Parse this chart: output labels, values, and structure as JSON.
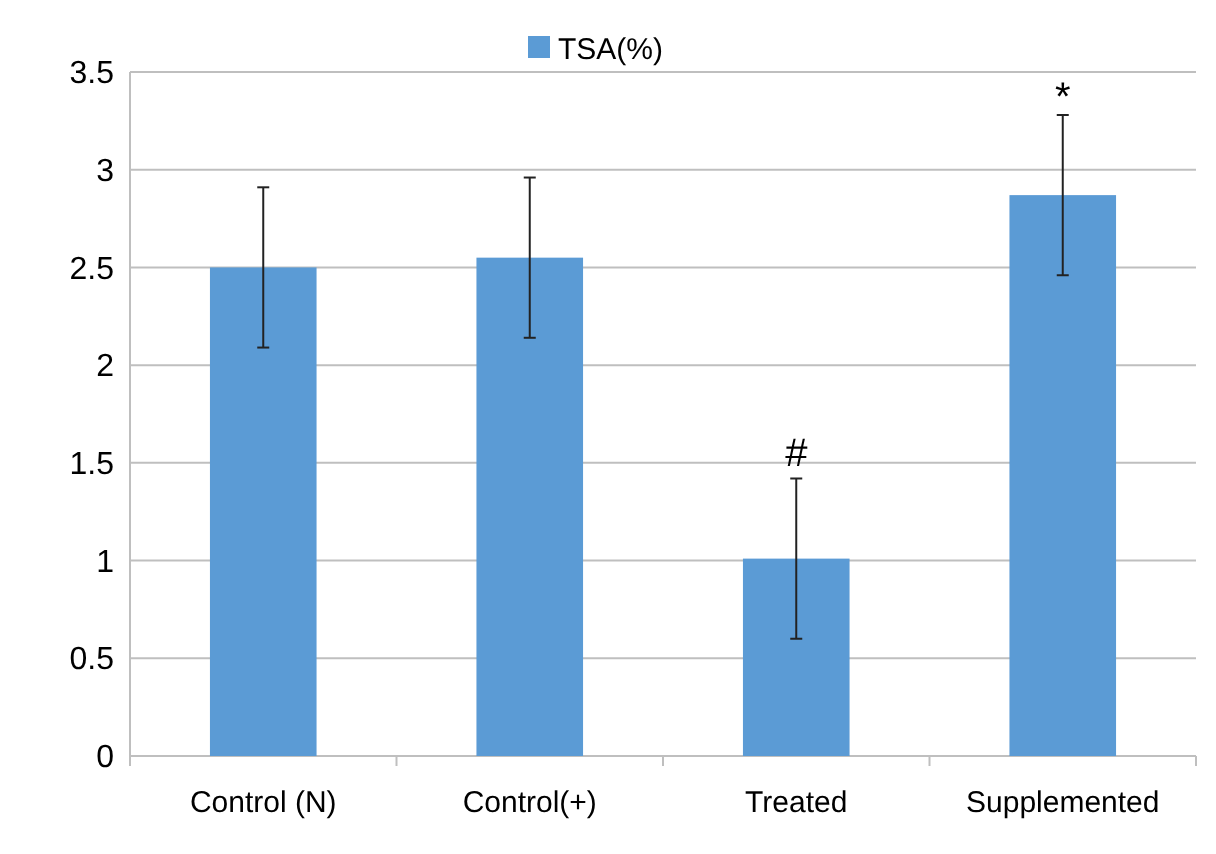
{
  "chart_data": {
    "type": "bar",
    "categories": [
      "Control (N)",
      "Control(+)",
      "Treated",
      "Supplemented"
    ],
    "series": [
      {
        "name": "TSA(%)",
        "color": "#5b9bd5",
        "values": [
          2.5,
          2.55,
          1.01,
          2.87
        ],
        "errors": [
          0.41,
          0.41,
          0.41,
          0.41
        ]
      }
    ],
    "ylim": [
      0,
      3.5
    ],
    "yticks": [
      0,
      0.5,
      1,
      1.5,
      2,
      2.5,
      3,
      3.5
    ],
    "grid": "y",
    "legend": "top",
    "annotations": [
      "#",
      "*"
    ]
  }
}
